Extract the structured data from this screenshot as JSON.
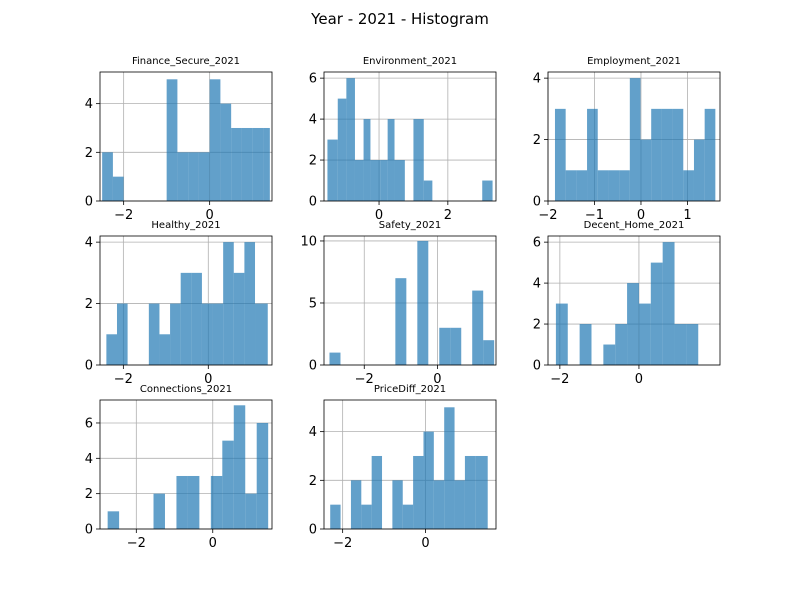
{
  "figure_title": "Year - 2021 - Histogram",
  "chart_data": [
    {
      "type": "bar",
      "title": "Finance_Secure_2021",
      "xlim": [
        -2.55,
        1.45
      ],
      "ylim": [
        0,
        5.3
      ],
      "xticks": [
        -2,
        0
      ],
      "xtick_labels": [
        "−2",
        "0"
      ],
      "yticks": [
        0,
        2,
        4
      ],
      "ytick_labels": [
        "0",
        "2",
        "4"
      ],
      "bin_edges": [
        -2.5,
        -2.25,
        -2.0,
        -1.75,
        -1.5,
        -1.25,
        -1.0,
        -0.75,
        -0.5,
        -0.25,
        0.0,
        0.25,
        0.5,
        0.75,
        1.0,
        1.25,
        1.4
      ],
      "counts": [
        2,
        1,
        0,
        0,
        0,
        0,
        5,
        2,
        2,
        2,
        5,
        4,
        3,
        3,
        3,
        3
      ]
    },
    {
      "type": "bar",
      "title": "Environment_2021",
      "xlim": [
        -1.6,
        3.4
      ],
      "ylim": [
        0,
        6.3
      ],
      "xticks": [
        0,
        2
      ],
      "xtick_labels": [
        "0",
        "2"
      ],
      "yticks": [
        0,
        2,
        4,
        6
      ],
      "ytick_labels": [
        "0",
        "2",
        "4",
        "6"
      ],
      "bin_edges": [
        -1.5,
        -1.2,
        -0.95,
        -0.7,
        -0.45,
        -0.25,
        0.05,
        0.25,
        0.45,
        0.75,
        1.0,
        1.3,
        1.55,
        1.85,
        2.15,
        2.45,
        2.75,
        3.0,
        3.3
      ],
      "counts": [
        3,
        5,
        6,
        2,
        4,
        2,
        2,
        4,
        2,
        0,
        4,
        1,
        0,
        0,
        0,
        0,
        0,
        1
      ]
    },
    {
      "type": "bar",
      "title": "Employment_2021",
      "xlim": [
        -2.0,
        1.7
      ],
      "ylim": [
        0,
        4.2
      ],
      "xticks": [
        -2,
        -1,
        0,
        1
      ],
      "xtick_labels": [
        "−2",
        "−1",
        "0",
        "1"
      ],
      "yticks": [
        0,
        2,
        4
      ],
      "ytick_labels": [
        "0",
        "2",
        "4"
      ],
      "bin_edges": [
        -1.85,
        -1.62,
        -1.39,
        -1.16,
        -0.93,
        -0.7,
        -0.47,
        -0.24,
        -0.01,
        0.22,
        0.45,
        0.68,
        0.91,
        1.14,
        1.37,
        1.6
      ],
      "counts": [
        3,
        1,
        1,
        3,
        1,
        1,
        1,
        4,
        2,
        3,
        3,
        3,
        1,
        2,
        3
      ]
    },
    {
      "type": "bar",
      "title": "Healthy_2021",
      "xlim": [
        -2.55,
        1.5
      ],
      "ylim": [
        0,
        4.2
      ],
      "xticks": [
        -2,
        0
      ],
      "xtick_labels": [
        "−2",
        "0"
      ],
      "yticks": [
        0,
        2,
        4
      ],
      "ytick_labels": [
        "0",
        "2",
        "4"
      ],
      "bin_edges": [
        -2.4,
        -2.15,
        -1.9,
        -1.65,
        -1.4,
        -1.15,
        -0.9,
        -0.65,
        -0.4,
        -0.15,
        0.1,
        0.35,
        0.6,
        0.85,
        1.1,
        1.4
      ],
      "counts": [
        1,
        2,
        0,
        0,
        2,
        1,
        2,
        3,
        3,
        2,
        2,
        4,
        3,
        4,
        2
      ]
    },
    {
      "type": "bar",
      "title": "Safety_2021",
      "xlim": [
        -3.1,
        1.6
      ],
      "ylim": [
        0,
        10.4
      ],
      "xticks": [
        -2,
        0
      ],
      "xtick_labels": [
        "−2",
        "0"
      ],
      "yticks": [
        0,
        5,
        10
      ],
      "ytick_labels": [
        "0",
        "5",
        "10"
      ],
      "bin_edges": [
        -2.95,
        -2.65,
        -2.35,
        -2.05,
        -1.75,
        -1.45,
        -1.15,
        -0.85,
        -0.55,
        -0.25,
        0.05,
        0.35,
        0.65,
        0.95,
        1.25,
        1.55
      ],
      "counts": [
        1,
        0,
        0,
        0,
        0,
        0,
        7,
        0,
        10,
        0,
        3,
        3,
        0,
        6,
        2
      ]
    },
    {
      "type": "bar",
      "title": "Decent_Home_2021",
      "xlim": [
        -2.3,
        2.05
      ],
      "ylim": [
        0,
        6.3
      ],
      "xticks": [
        -2,
        0
      ],
      "xtick_labels": [
        "−2",
        "0"
      ],
      "yticks": [
        0,
        2,
        4,
        6
      ],
      "ytick_labels": [
        "0",
        "2",
        "4",
        "6"
      ],
      "bin_edges": [
        -2.1,
        -1.8,
        -1.5,
        -1.2,
        -0.9,
        -0.6,
        -0.3,
        0.0,
        0.3,
        0.6,
        0.9,
        1.2,
        1.5,
        1.8
      ],
      "counts": [
        3,
        0,
        2,
        0,
        1,
        2,
        4,
        3,
        5,
        6,
        2,
        2,
        0
      ]
    },
    {
      "type": "bar",
      "title": "Connections_2021",
      "xlim": [
        -2.95,
        1.55
      ],
      "ylim": [
        0,
        7.3
      ],
      "xticks": [
        -2,
        0
      ],
      "xtick_labels": [
        "−2",
        "0"
      ],
      "yticks": [
        0,
        2,
        4,
        6
      ],
      "ytick_labels": [
        "0",
        "2",
        "4",
        "6"
      ],
      "bin_edges": [
        -2.75,
        -2.45,
        -2.15,
        -1.85,
        -1.55,
        -1.25,
        -0.95,
        -0.65,
        -0.35,
        -0.05,
        0.25,
        0.55,
        0.85,
        1.15,
        1.45
      ],
      "counts": [
        1,
        0,
        0,
        0,
        2,
        0,
        3,
        3,
        0,
        3,
        5,
        7,
        2,
        6
      ]
    },
    {
      "type": "bar",
      "title": "PriceDiff_2021",
      "xlim": [
        -2.45,
        1.7
      ],
      "ylim": [
        0,
        5.3
      ],
      "xticks": [
        -2,
        0
      ],
      "xtick_labels": [
        "−2",
        "0"
      ],
      "yticks": [
        0,
        2,
        4
      ],
      "ytick_labels": [
        "0",
        "2",
        "4"
      ],
      "bin_edges": [
        -2.3,
        -2.05,
        -1.8,
        -1.55,
        -1.3,
        -1.05,
        -0.8,
        -0.55,
        -0.3,
        -0.05,
        0.2,
        0.45,
        0.7,
        0.95,
        1.2,
        1.5
      ],
      "counts": [
        1,
        0,
        2,
        1,
        3,
        0,
        2,
        1,
        3,
        4,
        2,
        5,
        2,
        3,
        3
      ]
    }
  ]
}
